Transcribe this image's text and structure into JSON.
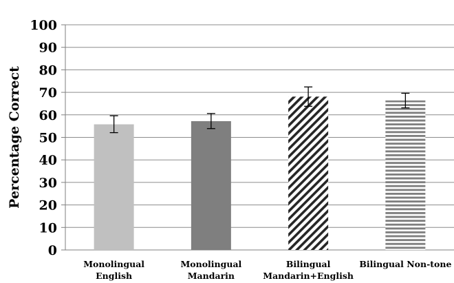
{
  "chart_data": {
    "type": "bar",
    "title": "",
    "xlabel": "",
    "ylabel": "Percentage Correct",
    "ylim": [
      0,
      100
    ],
    "yticks": [
      0,
      10,
      20,
      30,
      40,
      50,
      60,
      70,
      80,
      90,
      100
    ],
    "grid": true,
    "legend": "none",
    "categories": [
      [
        "Monolingual",
        "English"
      ],
      [
        "Monolingual",
        "Mandarin"
      ],
      [
        "Bilingual",
        "Mandarin+English"
      ],
      [
        "Bilingual Non-tone"
      ]
    ],
    "values": [
      55.8,
      57.2,
      68.1,
      66.4
    ],
    "error_low": [
      52.1,
      53.9,
      63.8,
      63.1
    ],
    "error_high": [
      59.6,
      60.6,
      72.4,
      69.6
    ],
    "fills": [
      {
        "style": "solid",
        "color": "#c0c0c0"
      },
      {
        "style": "solid",
        "color": "#7f7f7f"
      },
      {
        "style": "diagonal-stripes",
        "color": "#262626"
      },
      {
        "style": "horizontal-stripes",
        "color": "#7f7f7f"
      }
    ]
  }
}
